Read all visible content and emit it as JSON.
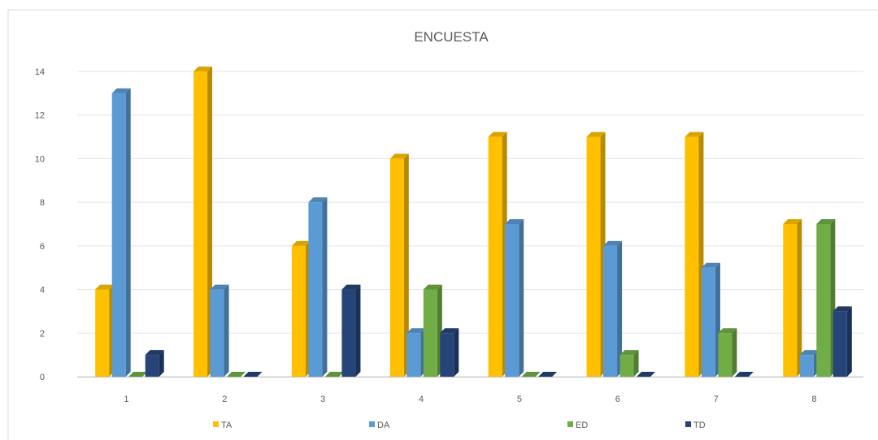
{
  "chart_data": {
    "type": "bar",
    "title": "ENCUESTA",
    "xlabel": "",
    "ylabel": "",
    "categories": [
      "1",
      "2",
      "3",
      "4",
      "5",
      "6",
      "7",
      "8"
    ],
    "ylim": [
      0,
      14
    ],
    "yticks": [
      "0",
      "2",
      "4",
      "6",
      "8",
      "10",
      "12",
      "14"
    ],
    "grid": true,
    "legend_position": "bottom",
    "series": [
      {
        "name": "TA",
        "color": "#ffc000",
        "values": [
          4,
          14,
          6,
          10,
          11,
          11,
          11,
          7
        ]
      },
      {
        "name": "DA",
        "color": "#5b9bd5",
        "values": [
          13,
          4,
          8,
          2,
          7,
          6,
          5,
          1
        ]
      },
      {
        "name": "ED",
        "color": "#70ad47",
        "values": [
          0,
          0,
          0,
          4,
          0,
          1,
          2,
          7
        ]
      },
      {
        "name": "TD",
        "color": "#264478",
        "values": [
          1,
          0,
          4,
          2,
          0,
          0,
          0,
          3
        ]
      }
    ]
  }
}
